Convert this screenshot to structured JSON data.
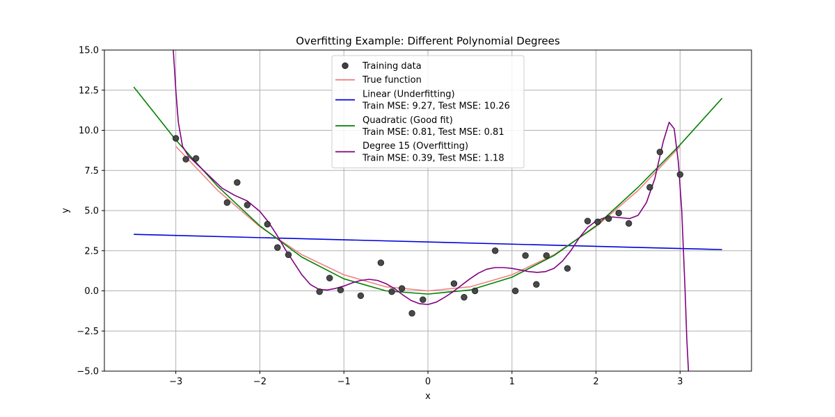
{
  "chart_data": {
    "type": "scatter",
    "title": "Overfitting Example: Different Polynomial Degrees",
    "xlabel": "x",
    "ylabel": "y",
    "xlim": [
      -3.85,
      3.85
    ],
    "ylim": [
      -5.0,
      15.0
    ],
    "xticks": [
      -3,
      -2,
      -1,
      0,
      1,
      2,
      3
    ],
    "xtick_labels": [
      "−3",
      "−2",
      "−1",
      "0",
      "1",
      "2",
      "3"
    ],
    "yticks": [
      -5.0,
      -2.5,
      0.0,
      2.5,
      5.0,
      7.5,
      10.0,
      12.5,
      15.0
    ],
    "ytick_labels": [
      "−5.0",
      "−2.5",
      "0.0",
      "2.5",
      "5.0",
      "7.5",
      "10.0",
      "12.5",
      "15.0"
    ],
    "grid": true,
    "legend_position": "top-center",
    "legend": [
      {
        "key": "training",
        "kind": "marker",
        "color": "#3f3f3f",
        "lines": [
          "Training data"
        ]
      },
      {
        "key": "true",
        "kind": "line",
        "color": "#f08080",
        "lines": [
          "True function"
        ]
      },
      {
        "key": "linear",
        "kind": "line",
        "color": "#0000dd",
        "lines": [
          "Linear (Underfitting)",
          "Train MSE: 9.27, Test MSE: 10.26"
        ]
      },
      {
        "key": "quadratic",
        "kind": "line",
        "color": "#008000",
        "lines": [
          "Quadratic (Good fit)",
          "Train MSE: 0.81, Test MSE: 0.81"
        ]
      },
      {
        "key": "degree15",
        "kind": "line",
        "color": "#800080",
        "lines": [
          "Degree 15 (Overfitting)",
          "Train MSE: 0.39, Test MSE: 1.18"
        ]
      }
    ],
    "training_data": [
      [
        -3.0,
        9.5
      ],
      [
        -2.88,
        8.2
      ],
      [
        -2.76,
        8.25
      ],
      [
        -2.39,
        5.5
      ],
      [
        -2.27,
        6.75
      ],
      [
        -2.15,
        5.35
      ],
      [
        -1.91,
        4.15
      ],
      [
        -1.79,
        2.7
      ],
      [
        -1.66,
        2.25
      ],
      [
        -1.29,
        -0.05
      ],
      [
        -1.17,
        0.8
      ],
      [
        -1.04,
        0.05
      ],
      [
        -0.8,
        -0.3
      ],
      [
        -0.56,
        1.75
      ],
      [
        -0.43,
        -0.05
      ],
      [
        -0.31,
        0.15
      ],
      [
        -0.19,
        -1.4
      ],
      [
        -0.06,
        -0.55
      ],
      [
        0.31,
        0.45
      ],
      [
        0.43,
        -0.4
      ],
      [
        0.56,
        0.0
      ],
      [
        0.8,
        2.5
      ],
      [
        1.04,
        0.0
      ],
      [
        1.16,
        2.2
      ],
      [
        1.29,
        0.4
      ],
      [
        1.41,
        2.2
      ],
      [
        1.66,
        1.4
      ],
      [
        1.9,
        4.35
      ],
      [
        2.02,
        4.3
      ],
      [
        2.15,
        4.5
      ],
      [
        2.27,
        4.85
      ],
      [
        2.39,
        4.2
      ],
      [
        2.64,
        6.45
      ],
      [
        2.76,
        8.65
      ],
      [
        3.0,
        7.25
      ]
    ],
    "true_function": [
      [
        -3.0,
        9.0
      ],
      [
        -2.5,
        6.25
      ],
      [
        -2.0,
        4.0
      ],
      [
        -1.5,
        2.25
      ],
      [
        -1.0,
        1.0
      ],
      [
        -0.5,
        0.25
      ],
      [
        0.0,
        0.0
      ],
      [
        0.5,
        0.25
      ],
      [
        1.0,
        1.0
      ],
      [
        1.5,
        2.25
      ],
      [
        2.0,
        4.0
      ],
      [
        2.5,
        6.25
      ],
      [
        3.0,
        9.0
      ]
    ],
    "linear_fit": [
      [
        -3.5,
        3.52
      ],
      [
        3.5,
        2.57
      ]
    ],
    "quadratic_fit": [
      [
        -3.5,
        12.7
      ],
      [
        -3.0,
        9.4
      ],
      [
        -2.5,
        6.5
      ],
      [
        -2.0,
        4.05
      ],
      [
        -1.5,
        2.1
      ],
      [
        -1.0,
        0.75
      ],
      [
        -0.5,
        0.0
      ],
      [
        0.0,
        -0.2
      ],
      [
        0.5,
        0.05
      ],
      [
        1.0,
        0.85
      ],
      [
        1.5,
        2.2
      ],
      [
        2.0,
        4.05
      ],
      [
        2.5,
        6.45
      ],
      [
        3.0,
        9.1
      ],
      [
        3.5,
        12.0
      ]
    ],
    "degree15_fit": [
      [
        -3.03,
        15.0
      ],
      [
        -3.0,
        12.5
      ],
      [
        -2.97,
        10.5
      ],
      [
        -2.92,
        9.0
      ],
      [
        -2.85,
        8.4
      ],
      [
        -2.75,
        7.9
      ],
      [
        -2.6,
        7.15
      ],
      [
        -2.45,
        6.4
      ],
      [
        -2.3,
        5.95
      ],
      [
        -2.15,
        5.6
      ],
      [
        -2.0,
        4.95
      ],
      [
        -1.9,
        4.3
      ],
      [
        -1.8,
        3.5
      ],
      [
        -1.7,
        2.6
      ],
      [
        -1.6,
        1.8
      ],
      [
        -1.5,
        1.0
      ],
      [
        -1.4,
        0.4
      ],
      [
        -1.3,
        0.1
      ],
      [
        -1.2,
        0.05
      ],
      [
        -1.1,
        0.15
      ],
      [
        -1.0,
        0.3
      ],
      [
        -0.9,
        0.5
      ],
      [
        -0.8,
        0.65
      ],
      [
        -0.7,
        0.72
      ],
      [
        -0.6,
        0.65
      ],
      [
        -0.5,
        0.45
      ],
      [
        -0.4,
        0.15
      ],
      [
        -0.3,
        -0.25
      ],
      [
        -0.2,
        -0.6
      ],
      [
        -0.1,
        -0.8
      ],
      [
        0.0,
        -0.85
      ],
      [
        0.1,
        -0.7
      ],
      [
        0.2,
        -0.4
      ],
      [
        0.3,
        -0.05
      ],
      [
        0.4,
        0.35
      ],
      [
        0.5,
        0.75
      ],
      [
        0.6,
        1.1
      ],
      [
        0.7,
        1.35
      ],
      [
        0.8,
        1.45
      ],
      [
        0.9,
        1.45
      ],
      [
        1.0,
        1.4
      ],
      [
        1.1,
        1.3
      ],
      [
        1.2,
        1.2
      ],
      [
        1.3,
        1.15
      ],
      [
        1.4,
        1.2
      ],
      [
        1.5,
        1.4
      ],
      [
        1.6,
        1.85
      ],
      [
        1.7,
        2.5
      ],
      [
        1.8,
        3.3
      ],
      [
        1.9,
        3.95
      ],
      [
        2.0,
        4.35
      ],
      [
        2.1,
        4.55
      ],
      [
        2.2,
        4.6
      ],
      [
        2.3,
        4.55
      ],
      [
        2.4,
        4.5
      ],
      [
        2.5,
        4.7
      ],
      [
        2.6,
        5.5
      ],
      [
        2.7,
        7.0
      ],
      [
        2.8,
        9.3
      ],
      [
        2.87,
        10.5
      ],
      [
        2.93,
        10.1
      ],
      [
        2.98,
        8.0
      ],
      [
        3.02,
        5.0
      ],
      [
        3.06,
        0.0
      ],
      [
        3.08,
        -3.0
      ],
      [
        3.1,
        -5.0
      ]
    ]
  }
}
